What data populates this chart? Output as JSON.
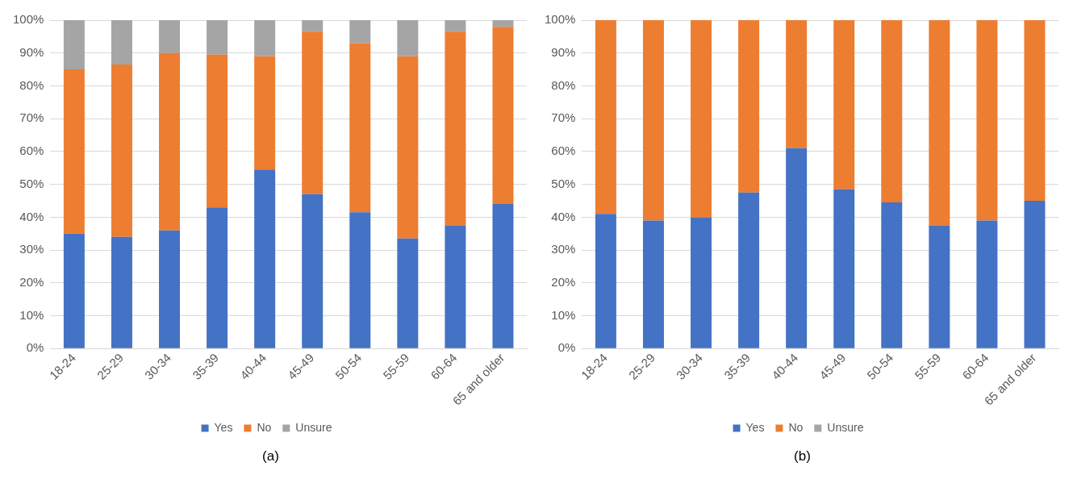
{
  "chart_data": [
    {
      "type": "bar",
      "stacked": true,
      "categories": [
        "18-24",
        "25-29",
        "30-34",
        "35-39",
        "40-44",
        "45-49",
        "50-54",
        "55-59",
        "60-64",
        "65 and older"
      ],
      "series": [
        {
          "name": "Yes",
          "color": "#4472c4",
          "values": [
            35,
            34,
            36,
            43,
            54.5,
            47,
            41.5,
            33.5,
            37.5,
            44
          ]
        },
        {
          "name": "No",
          "color": "#ed7d31",
          "values": [
            50,
            52.5,
            54,
            46.5,
            34.5,
            49.5,
            51.5,
            55.5,
            59,
            54
          ]
        },
        {
          "name": "Unsure",
          "color": "#a5a5a5",
          "values": [
            15,
            13.5,
            10,
            10.5,
            11,
            3.5,
            7,
            11,
            3.5,
            2
          ]
        }
      ],
      "ylim": [
        0,
        100
      ],
      "yticks": [
        {
          "value": 0,
          "label": "0%"
        },
        {
          "value": 10,
          "label": "10%"
        },
        {
          "value": 20,
          "label": "20%"
        },
        {
          "value": 30,
          "label": "30%"
        },
        {
          "value": 40,
          "label": "40%"
        },
        {
          "value": 50,
          "label": "50%"
        },
        {
          "value": 60,
          "label": "60%"
        },
        {
          "value": 70,
          "label": "70%"
        },
        {
          "value": 80,
          "label": "80%"
        },
        {
          "value": 90,
          "label": "90%"
        },
        {
          "value": 100,
          "label": "100%"
        }
      ],
      "grid": "y",
      "legend": "bottom",
      "annotations": [
        "(a)"
      ]
    },
    {
      "type": "bar",
      "stacked": true,
      "categories": [
        "18-24",
        "25-29",
        "30-34",
        "35-39",
        "40-44",
        "45-49",
        "50-54",
        "55-59",
        "60-64",
        "65 and older"
      ],
      "series": [
        {
          "name": "Yes",
          "color": "#4472c4",
          "values": [
            41,
            39,
            40,
            47.5,
            61,
            48.5,
            44.5,
            37.5,
            39,
            45
          ]
        },
        {
          "name": "No",
          "color": "#ed7d31",
          "values": [
            59,
            61,
            60,
            52.5,
            39,
            51.5,
            55.5,
            62.5,
            61,
            55
          ]
        },
        {
          "name": "Unsure",
          "color": "#a5a5a5",
          "values": [
            0,
            0,
            0,
            0,
            0,
            0,
            0,
            0,
            0,
            0
          ]
        }
      ],
      "ylim": [
        0,
        100
      ],
      "yticks": [
        {
          "value": 0,
          "label": "0%"
        },
        {
          "value": 10,
          "label": "10%"
        },
        {
          "value": 20,
          "label": "20%"
        },
        {
          "value": 30,
          "label": "30%"
        },
        {
          "value": 40,
          "label": "40%"
        },
        {
          "value": 50,
          "label": "50%"
        },
        {
          "value": 60,
          "label": "60%"
        },
        {
          "value": 70,
          "label": "70%"
        },
        {
          "value": 80,
          "label": "80%"
        },
        {
          "value": 90,
          "label": "90%"
        },
        {
          "value": 100,
          "label": "100%"
        }
      ],
      "grid": "y",
      "legend": "bottom",
      "annotations": [
        "(b)"
      ]
    }
  ]
}
